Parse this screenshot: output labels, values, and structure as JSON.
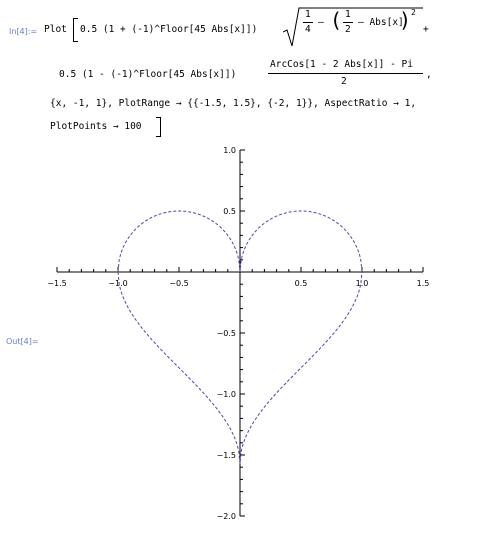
{
  "input": {
    "label": "In[4]:=",
    "lines": {
      "plot_head": "Plot",
      "l1_part1": "0.5 (1 + (-1)^Floor[45 Abs[x]])",
      "sqrt_quarter_num": "1",
      "sqrt_quarter_den": "4",
      "minus": "–",
      "half_num": "1",
      "half_den": "2",
      "minus_abs": "– Abs[x]",
      "exponent": "2",
      "plus": "+",
      "l2_part1": "0.5 (1 - (-1)^Floor[45 Abs[x]])",
      "arccos_num": "ArcCos[1 - 2 Abs[x]] - Pi",
      "arccos_den": "2",
      "comma": ",",
      "l3": "{x, -1, 1}, PlotRange → {{-1.5, 1.5}, {-2, 1}}, AspectRatio → 1,",
      "l4": "PlotPoints → 100"
    }
  },
  "output": {
    "label": "Out[4]="
  },
  "chart_data": {
    "type": "line",
    "description_of_curves": "heart: upper arcs y=sqrt(1/4-(1/2-|x|)^2), lower y=(acos(1-2|x|)-pi)/2",
    "x_range": [
      -1,
      1
    ],
    "xlim": [
      -1.5,
      1.5
    ],
    "ylim": [
      -2,
      1
    ],
    "x_ticks": [
      "-1.5",
      "-1.0",
      "-0.5",
      "0.5",
      "1.0",
      "1.5"
    ],
    "y_ticks": [
      "1.0",
      "0.5",
      "-0.5",
      "-1.0",
      "-1.5",
      "-2.0"
    ],
    "line_color": "#4a4aa8",
    "line_style": "dashed",
    "series": [
      {
        "values": []
      }
    ]
  }
}
